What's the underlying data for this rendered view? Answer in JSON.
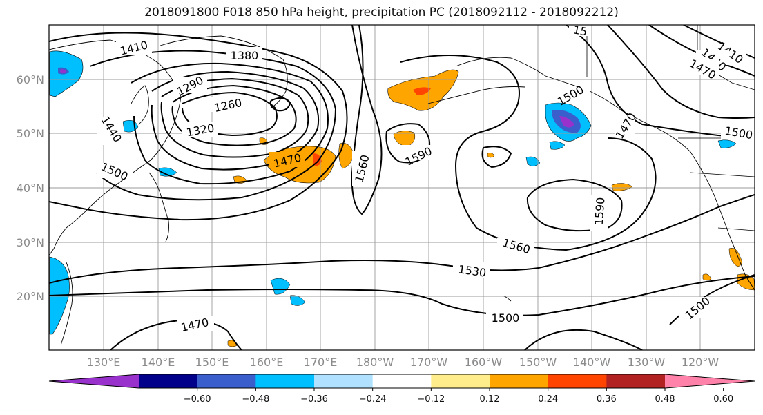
{
  "title": "2018091800 F018 850 hPa height, precipitation PC (2018092112 - 2018092212)",
  "map": {
    "lon_labels": [
      "130°E",
      "140°E",
      "150°E",
      "160°E",
      "170°E",
      "180°W",
      "170°W",
      "160°W",
      "150°W",
      "140°W",
      "130°W",
      "120°W"
    ],
    "lat_labels": [
      "60°N",
      "50°N",
      "40°N",
      "30°N",
      "20°N"
    ],
    "contour_labels": [
      "1410",
      "1380",
      "1290",
      "1260",
      "1320",
      "1440",
      "1500",
      "1470",
      "1560",
      "1590",
      "1500",
      "1470",
      "1500",
      "1590",
      "1560",
      "1530",
      "1500",
      "1470",
      "1500",
      "1410",
      "1440",
      "1470",
      "15"
    ]
  },
  "colorbar": {
    "colors": [
      "#9932CC",
      "#00008B",
      "#3A5FCD",
      "#00BFFF",
      "#B0E2FF",
      "#FFFFFF",
      "#FFEC8B",
      "#FFA500",
      "#FF4500",
      "#B22222",
      "#FF82AB"
    ],
    "tick_labels": [
      "−0.60",
      "−0.48",
      "−0.36",
      "−0.24",
      "−0.12",
      "0.12",
      "0.24",
      "0.36",
      "0.48",
      "0.60"
    ]
  }
}
